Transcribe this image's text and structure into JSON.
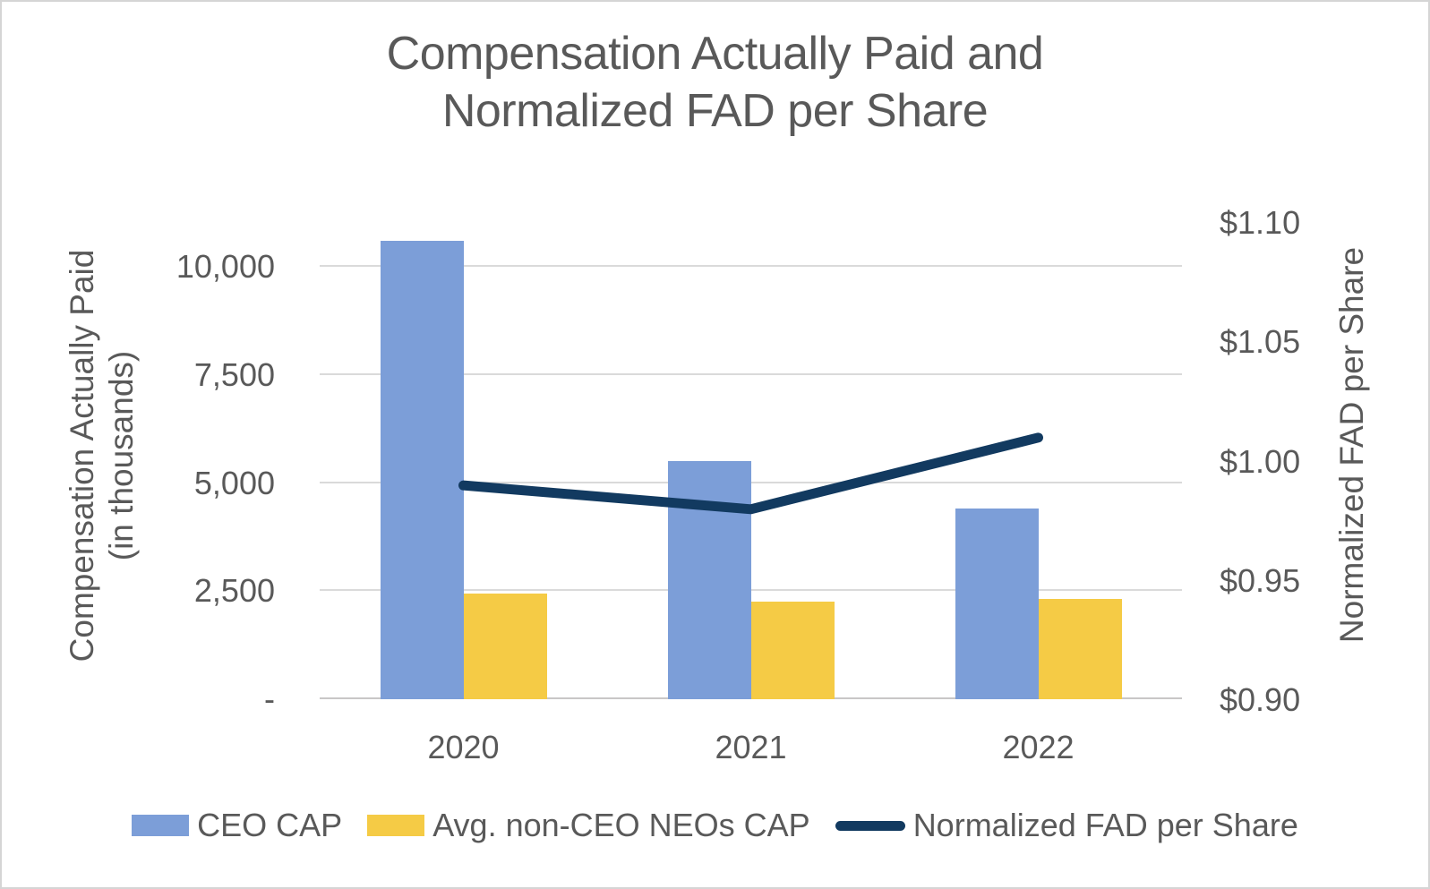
{
  "title": {
    "line1": "Compensation Actually Paid and",
    "line2": "Normalized FAD per Share"
  },
  "axes": {
    "left": {
      "title_line1": "Compensation Actually Paid",
      "title_line2": "(in thousands)",
      "ticks": [
        {
          "label": "10,000",
          "value": 10000
        },
        {
          "label": "7,500",
          "value": 7500
        },
        {
          "label": "5,000",
          "value": 5000
        },
        {
          "label": "2,500",
          "value": 2500
        },
        {
          "label": "-",
          "value": 0
        }
      ]
    },
    "right": {
      "title": "Normalized FAD per Share",
      "ticks": [
        {
          "label": "$1.10",
          "value": 1.1
        },
        {
          "label": "$1.05",
          "value": 1.05
        },
        {
          "label": "$1.00",
          "value": 1.0
        },
        {
          "label": "$0.95",
          "value": 0.95
        },
        {
          "label": "$0.90",
          "value": 0.9
        }
      ]
    },
    "x": {
      "categories": [
        "2020",
        "2021",
        "2022"
      ]
    }
  },
  "legend": [
    {
      "label": "CEO CAP",
      "swatch": "rect",
      "color": "#7C9ED8"
    },
    {
      "label": "Avg. non-CEO NEOs CAP",
      "swatch": "rect",
      "color": "#F5CB45"
    },
    {
      "label": "Normalized FAD per Share",
      "swatch": "line",
      "color": "#123A60"
    }
  ],
  "chart_data": {
    "type": "combo",
    "title": "Compensation Actually Paid and Normalized FAD per Share",
    "categories": [
      "2020",
      "2021",
      "2022"
    ],
    "series": [
      {
        "name": "CEO CAP",
        "type": "bar",
        "axis": "left",
        "color": "#7C9ED8",
        "values": [
          10600,
          5500,
          4400
        ]
      },
      {
        "name": "Avg. non-CEO NEOs CAP",
        "type": "bar",
        "axis": "left",
        "color": "#F5CB45",
        "values": [
          2450,
          2250,
          2320
        ]
      },
      {
        "name": "Normalized FAD per Share",
        "type": "line",
        "axis": "right",
        "color": "#123A60",
        "values": [
          0.99,
          0.98,
          1.01
        ]
      }
    ],
    "left_ylabel": "Compensation Actually Paid (in thousands)",
    "right_ylabel": "Normalized FAD per Share",
    "left_ylim": [
      0,
      10000
    ],
    "left_tick_step": 2500,
    "right_ylim": [
      0.9,
      1.1
    ],
    "right_tick_step": 0.05,
    "grid": true,
    "legend_position": "bottom"
  },
  "colors": {
    "text": "#595959",
    "gridline": "#DADADA",
    "baseline": "#C9C7C7",
    "background": "#FFFFFF",
    "border": "#D5D5D5",
    "ceo_bar": "#7C9ED8",
    "neo_bar": "#F5CB45",
    "fad_line": "#123A60"
  }
}
